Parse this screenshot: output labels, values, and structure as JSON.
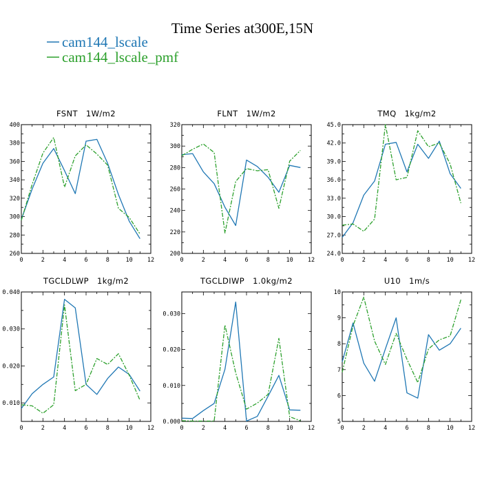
{
  "title": "Time Series at300E,15N",
  "legend": [
    {
      "name": "cam144_lscale",
      "color": "#1f77b4",
      "dash": "solid"
    },
    {
      "name": "cam144_lscale_pmf",
      "color": "#2ca02c",
      "dash": "dashdot"
    }
  ],
  "chart_data": [
    {
      "type": "line",
      "title": "FSNT",
      "units": "1W/m2",
      "x": [
        0,
        1,
        2,
        3,
        4,
        5,
        6,
        7,
        8,
        9,
        10,
        11
      ],
      "xlim": [
        0,
        12
      ],
      "xticks": [
        "0",
        "2",
        "4",
        "6",
        "8",
        "10",
        "12"
      ],
      "ylim": [
        260,
        400
      ],
      "yticks": [
        "260",
        "280",
        "300",
        "320",
        "340",
        "360",
        "380",
        "400"
      ],
      "series": [
        {
          "name": "cam144_lscale",
          "values": [
            297,
            330,
            358,
            374,
            350,
            325,
            382,
            384,
            358,
            324,
            295,
            276
          ]
        },
        {
          "name": "cam144_lscale_pmf",
          "values": [
            296,
            335,
            369,
            386,
            332,
            366,
            378,
            368,
            356,
            309,
            299,
            281
          ]
        }
      ]
    },
    {
      "type": "line",
      "title": "FLNT",
      "units": "1W/m2",
      "x": [
        0,
        1,
        2,
        3,
        4,
        5,
        6,
        7,
        8,
        9,
        10,
        11
      ],
      "xlim": [
        0,
        12
      ],
      "xticks": [
        "0",
        "2",
        "4",
        "6",
        "8",
        "10",
        "12"
      ],
      "ylim": [
        200,
        320
      ],
      "yticks": [
        "200",
        "220",
        "240",
        "260",
        "280",
        "300",
        "320"
      ],
      "series": [
        {
          "name": "cam144_lscale",
          "values": [
            292,
            293,
            276,
            265,
            243,
            226,
            287,
            281,
            271,
            257,
            282,
            280
          ]
        },
        {
          "name": "cam144_lscale_pmf",
          "values": [
            291,
            297,
            302,
            294,
            219,
            267,
            279,
            277,
            278,
            242,
            286,
            296
          ]
        }
      ]
    },
    {
      "type": "line",
      "title": "TMQ",
      "units": "1kg/m2",
      "x": [
        0,
        1,
        2,
        3,
        4,
        5,
        6,
        7,
        8,
        9,
        10,
        11
      ],
      "xlim": [
        0,
        12
      ],
      "xticks": [
        "0",
        "2",
        "4",
        "6",
        "8",
        "10",
        "12"
      ],
      "ylim": [
        24,
        45
      ],
      "yticks": [
        "24.0",
        "27.0",
        "30.0",
        "33.0",
        "36.0",
        "39.0",
        "42.0",
        "45.0"
      ],
      "series": [
        {
          "name": "cam144_lscale",
          "values": [
            26.6,
            29.0,
            33.5,
            35.8,
            41.8,
            42.1,
            37.3,
            41.8,
            39.5,
            42.3,
            37.0,
            34.6
          ]
        },
        {
          "name": "cam144_lscale_pmf",
          "values": [
            28.6,
            28.8,
            27.6,
            29.6,
            45.0,
            36.0,
            36.4,
            44.0,
            41.4,
            42.0,
            38.6,
            32.2
          ]
        }
      ]
    },
    {
      "type": "line",
      "title": "TGCLDLWP",
      "units": "1kg/m2",
      "x": [
        0,
        1,
        2,
        3,
        4,
        5,
        6,
        7,
        8,
        9,
        10,
        11
      ],
      "xlim": [
        0,
        12
      ],
      "xticks": [
        "0",
        "2",
        "4",
        "6",
        "8",
        "10",
        "12"
      ],
      "ylim": [
        0.005,
        0.04
      ],
      "yticks": [
        "0.010",
        "0.020",
        "0.030",
        "0.040"
      ],
      "yticksvals": [
        0.01,
        0.02,
        0.03,
        0.04
      ],
      "series": [
        {
          "name": "cam144_lscale",
          "values": [
            0.0085,
            0.0125,
            0.015,
            0.017,
            0.038,
            0.0357,
            0.015,
            0.0123,
            0.0166,
            0.0197,
            0.0177,
            0.0132
          ]
        },
        {
          "name": "cam144_lscale_pmf",
          "values": [
            0.0095,
            0.0092,
            0.0072,
            0.0095,
            0.0365,
            0.0133,
            0.015,
            0.022,
            0.0204,
            0.0233,
            0.0175,
            0.0107
          ]
        }
      ]
    },
    {
      "type": "line",
      "title": "TGCLDIWP",
      "units": "1.0kg/m2",
      "x": [
        0,
        1,
        2,
        3,
        4,
        5,
        6,
        7,
        8,
        9,
        10,
        11
      ],
      "xlim": [
        0,
        12
      ],
      "xticks": [
        "0",
        "2",
        "4",
        "6",
        "8",
        "10",
        "12"
      ],
      "ylim": [
        0,
        0.036
      ],
      "yticks": [
        "0.000",
        "0.010",
        "0.020",
        "0.030"
      ],
      "yticksvals": [
        0,
        0.01,
        0.02,
        0.03
      ],
      "series": [
        {
          "name": "cam144_lscale",
          "values": [
            0.0009,
            0.0008,
            0.003,
            0.005,
            0.0145,
            0.0332,
            0.0001,
            0.0014,
            0.007,
            0.0128,
            0.0032,
            0.0031
          ]
        },
        {
          "name": "cam144_lscale_pmf",
          "values": [
            0.0002,
            0.0001,
            0.0001,
            0.0001,
            0.0268,
            0.0135,
            0.0034,
            0.0051,
            0.0075,
            0.0231,
            0.0013,
            0.0002
          ]
        }
      ]
    },
    {
      "type": "line",
      "title": "U10",
      "units": "1m/s",
      "x": [
        0,
        1,
        2,
        3,
        4,
        5,
        6,
        7,
        8,
        9,
        10,
        11
      ],
      "xlim": [
        0,
        12
      ],
      "xticks": [
        "0",
        "2",
        "4",
        "6",
        "8",
        "10",
        "12"
      ],
      "ylim": [
        5,
        10
      ],
      "yticks": [
        "5",
        "6",
        "7",
        "8",
        "9",
        "10"
      ],
      "series": [
        {
          "name": "cam144_lscale",
          "values": [
            7.3,
            8.8,
            7.25,
            6.55,
            7.8,
            9.0,
            6.1,
            5.9,
            8.35,
            7.75,
            8.0,
            8.6
          ]
        },
        {
          "name": "cam144_lscale_pmf",
          "values": [
            6.9,
            8.7,
            9.8,
            8.1,
            7.2,
            8.4,
            7.4,
            6.5,
            7.8,
            8.15,
            8.3,
            9.7
          ]
        }
      ]
    }
  ]
}
